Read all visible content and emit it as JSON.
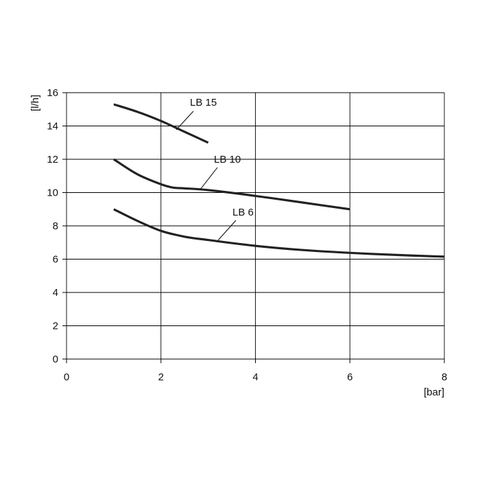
{
  "chart_data": {
    "type": "line",
    "title": "",
    "xlabel": "[bar]",
    "ylabel": "[l/h]",
    "xlim": [
      0,
      8
    ],
    "ylim": [
      0,
      16
    ],
    "x_ticks": [
      0,
      2,
      4,
      6,
      8
    ],
    "y_ticks": [
      0,
      2,
      4,
      6,
      8,
      10,
      12,
      14,
      16
    ],
    "grid": true,
    "line_color": "#222222",
    "series": [
      {
        "name": "LB 15",
        "x": [
          1,
          1.5,
          2,
          2.5,
          3
        ],
        "y": [
          15.3,
          14.85,
          14.3,
          13.65,
          13.0
        ]
      },
      {
        "name": "LB 10",
        "x": [
          1,
          1.5,
          2,
          2.25,
          2.5,
          3,
          4,
          5,
          6
        ],
        "y": [
          12.0,
          11.1,
          10.5,
          10.3,
          10.25,
          10.15,
          9.8,
          9.4,
          9.0
        ]
      },
      {
        "name": "LB 6",
        "x": [
          1,
          1.5,
          2,
          2.5,
          3,
          4,
          5,
          6,
          7,
          8
        ],
        "y": [
          9.0,
          8.3,
          7.7,
          7.35,
          7.15,
          6.8,
          6.55,
          6.38,
          6.25,
          6.15
        ]
      }
    ]
  }
}
